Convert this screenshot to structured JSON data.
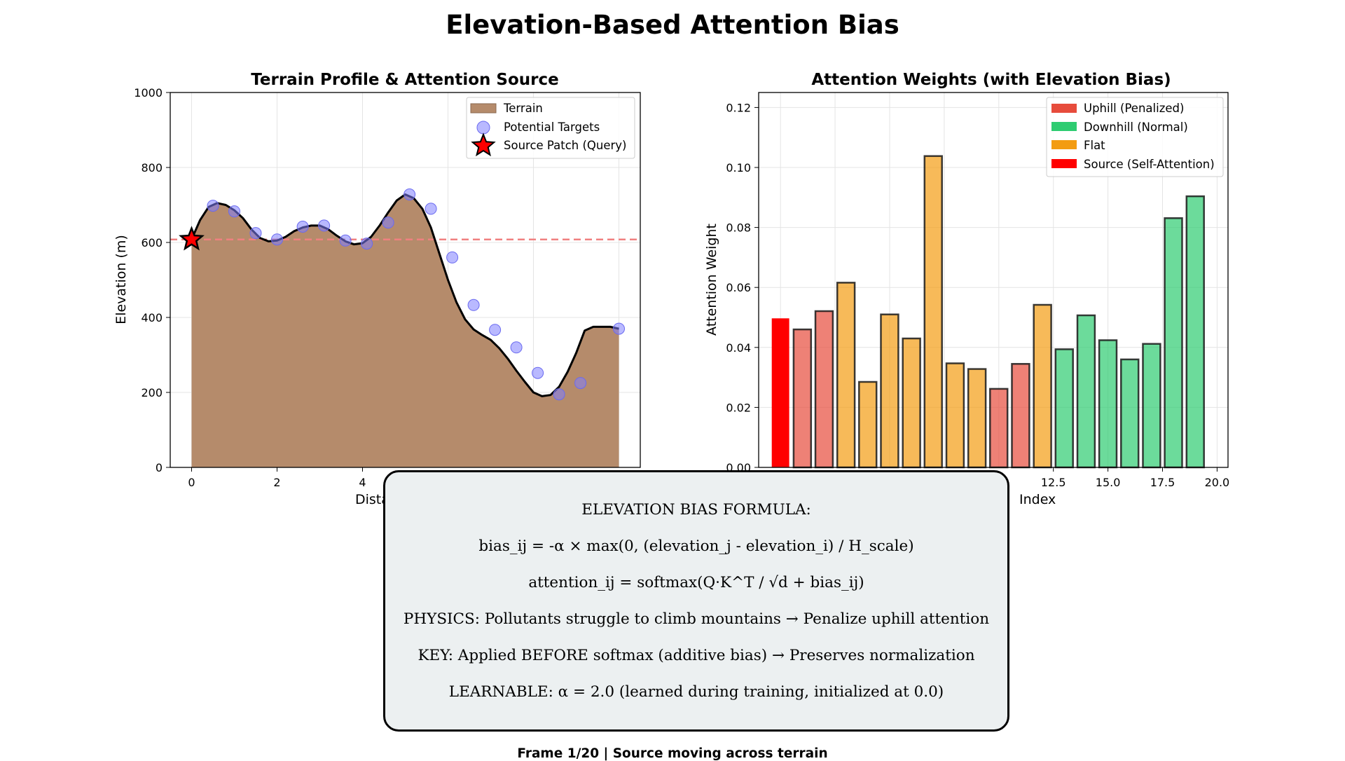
{
  "title": "Elevation-Based Attention Bias",
  "colors": {
    "terrain_fill": "#b58b6b",
    "target_points": "#8080ff",
    "source_star": "#ff0000",
    "reference_line": "#f08080",
    "uphill": "#e74c3c",
    "downhill": "#2ecc71",
    "flat": "#f39c12",
    "source": "#ff0000",
    "formula_box_bg": "#ecf0f1"
  },
  "chart_data": [
    {
      "type": "area",
      "title": "Terrain Profile & Attention Source",
      "xlabel": "Distance",
      "ylabel": "Elevation (m)",
      "xlim": [
        -0.5,
        10.5
      ],
      "ylim": [
        0,
        1000
      ],
      "xticks": [
        0,
        2,
        4
      ],
      "yticks": [
        0,
        200,
        400,
        600,
        800,
        1000
      ],
      "grid": true,
      "legend": [
        "Terrain",
        "Potential Targets",
        "Source Patch (Query)"
      ],
      "legend_position": "top-right",
      "terrain": {
        "x": [
          0,
          0.2,
          0.4,
          0.6,
          0.8,
          1.0,
          1.2,
          1.4,
          1.6,
          1.8,
          2.0,
          2.2,
          2.4,
          2.6,
          2.8,
          3.0,
          3.2,
          3.4,
          3.6,
          3.8,
          4.0,
          4.2,
          4.4,
          4.6,
          4.8,
          5.0,
          5.2,
          5.4,
          5.6,
          5.8,
          6.0,
          6.2,
          6.4,
          6.6,
          6.8,
          7.0,
          7.2,
          7.4,
          7.6,
          7.8,
          8.0,
          8.2,
          8.4,
          8.6,
          8.8,
          9.0,
          9.2,
          9.4,
          9.6,
          9.8,
          10.0
        ],
        "y": [
          608,
          660,
          695,
          705,
          700,
          686,
          665,
          635,
          612,
          603,
          605,
          615,
          630,
          640,
          645,
          645,
          635,
          618,
          603,
          595,
          598,
          615,
          645,
          680,
          712,
          728,
          718,
          690,
          640,
          570,
          500,
          440,
          395,
          368,
          353,
          340,
          318,
          290,
          258,
          228,
          200,
          190,
          193,
          215,
          255,
          305,
          365,
          375,
          375,
          375,
          370
        ]
      },
      "targets": {
        "x": [
          0.5,
          1.0,
          1.5,
          2.0,
          2.6,
          3.1,
          3.6,
          4.1,
          4.6,
          5.1,
          5.6,
          6.1,
          6.6,
          7.1,
          7.6,
          8.1,
          8.6,
          9.1,
          10.0
        ],
        "y": [
          698,
          683,
          625,
          608,
          642,
          645,
          605,
          597,
          653,
          728,
          690,
          560,
          433,
          367,
          320,
          252,
          195,
          225,
          370
        ]
      },
      "source": {
        "x": 0,
        "y": 608
      },
      "reference_elevation": 608
    },
    {
      "type": "bar",
      "title": "Attention Weights (with Elevation Bias)",
      "xlabel": "Index",
      "ylabel": "Attention Weight",
      "xlim": [
        -1,
        20.5
      ],
      "ylim": [
        0,
        0.125
      ],
      "xticks": [
        "12.5",
        "15.0",
        "17.5",
        "20.0"
      ],
      "yticks": [
        "0.00",
        "0.02",
        "0.04",
        "0.06",
        "0.08",
        "0.10",
        "0.12"
      ],
      "grid": true,
      "legend": [
        "Uphill (Penalized)",
        "Downhill (Normal)",
        "Flat",
        "Source (Self-Attention)"
      ],
      "legend_position": "top-right",
      "x": [
        0,
        1,
        2,
        3,
        4,
        5,
        6,
        7,
        8,
        9,
        10,
        11,
        12,
        13,
        14,
        15,
        16,
        17,
        18,
        19
      ],
      "values": [
        0.0497,
        0.046,
        0.0521,
        0.0616,
        0.0285,
        0.051,
        0.043,
        0.1038,
        0.0347,
        0.0328,
        0.0262,
        0.0345,
        0.0542,
        0.0394,
        0.0507,
        0.0424,
        0.036,
        0.0412,
        0.0831,
        0.0904
      ],
      "categories": [
        "source",
        "uphill",
        "uphill",
        "flat",
        "flat",
        "flat",
        "flat",
        "flat",
        "flat",
        "flat",
        "uphill",
        "uphill",
        "flat",
        "downhill",
        "downhill",
        "downhill",
        "downhill",
        "downhill",
        "downhill",
        "downhill"
      ]
    }
  ],
  "formula_box": {
    "lines": [
      "ELEVATION BIAS FORMULA:",
      "bias_ij = -α × max(0, (elevation_j - elevation_i) / H_scale)",
      "attention_ij = softmax(Q·K^T / √d + bias_ij)",
      "PHYSICS: Pollutants struggle to climb mountains → Penalize uphill attention",
      "KEY: Applied BEFORE softmax (additive bias) → Preserves normalization",
      "LEARNABLE: α = 2.0 (learned during training, initialized at 0.0)"
    ]
  },
  "footer": "Frame 1/20 | Source moving across terrain"
}
